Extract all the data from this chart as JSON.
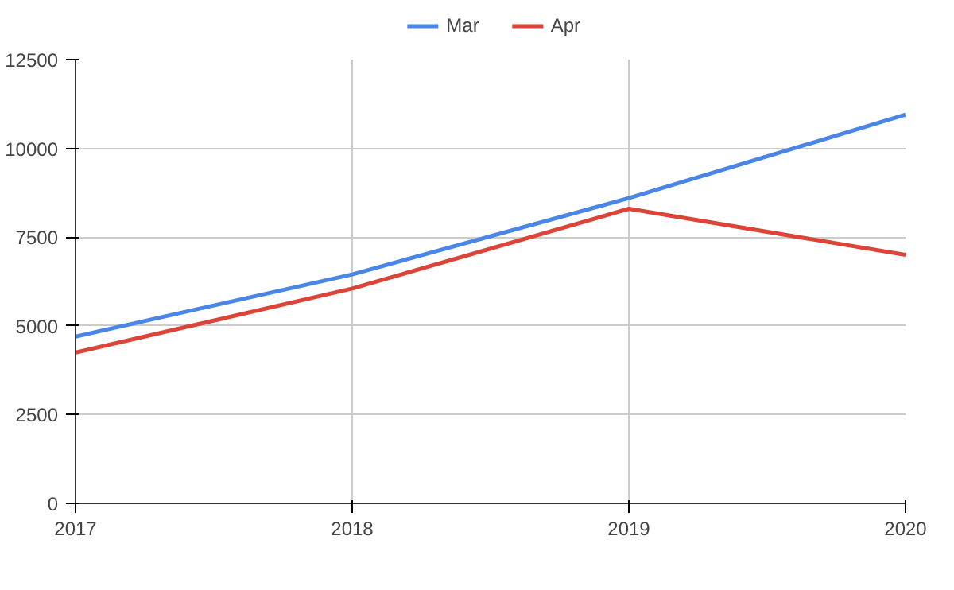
{
  "chart_data": {
    "type": "line",
    "x": [
      2017,
      2018,
      2019,
      2020
    ],
    "series": [
      {
        "name": "Mar",
        "color": "#4a86e8",
        "values": [
          4700,
          6450,
          8600,
          10950
        ]
      },
      {
        "name": "Apr",
        "color": "#db4437",
        "values": [
          4250,
          6050,
          8300,
          7000
        ]
      }
    ],
    "xlim": [
      2017,
      2020
    ],
    "xticks": [
      2017,
      2018,
      2019,
      2020
    ],
    "ylim": [
      0,
      12500
    ],
    "yticks": [
      0,
      2500,
      5000,
      7500,
      10000,
      12500
    ],
    "grid": true,
    "legend": "top",
    "marker": "none",
    "line_style": "solid"
  }
}
